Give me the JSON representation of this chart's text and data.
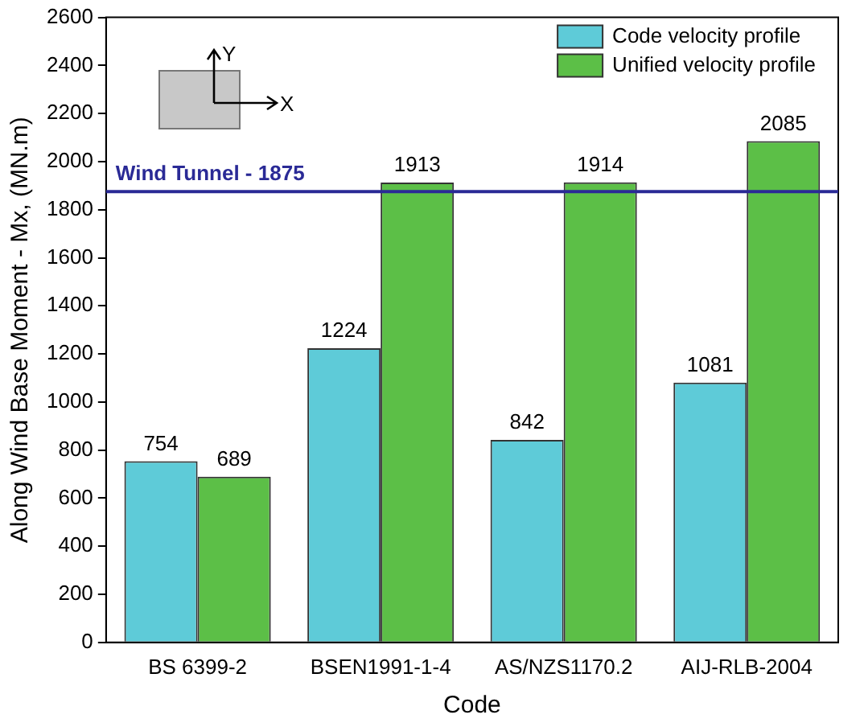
{
  "chart_data": {
    "type": "bar",
    "xlabel": "Code",
    "ylabel": "Along Wind Base Moment - Mx, (MN.m)",
    "categories": [
      "BS 6399-2",
      "BSEN1991-1-4",
      "AS/NZS1170.2",
      "AIJ-RLB-2004"
    ],
    "series": [
      {
        "name": "Code velocity profile",
        "color": "#5ecbd8",
        "values": [
          754,
          1224,
          842,
          1081
        ]
      },
      {
        "name": "Unified velocity profile",
        "color": "#5cbf47",
        "values": [
          689,
          1913,
          1914,
          2085
        ]
      }
    ],
    "ylim": [
      0,
      2600
    ],
    "yticks": [
      0,
      200,
      400,
      600,
      800,
      1000,
      1200,
      1400,
      1600,
      1800,
      2000,
      2200,
      2400,
      2600
    ],
    "ref_lines": [
      {
        "axis": "y",
        "value": 1875,
        "label": "Wind Tunnel - 1875",
        "color": "#2a2a96"
      }
    ],
    "annotations": [
      "Y",
      "X"
    ],
    "data_labels": true,
    "legend": "top right",
    "grid": false
  }
}
